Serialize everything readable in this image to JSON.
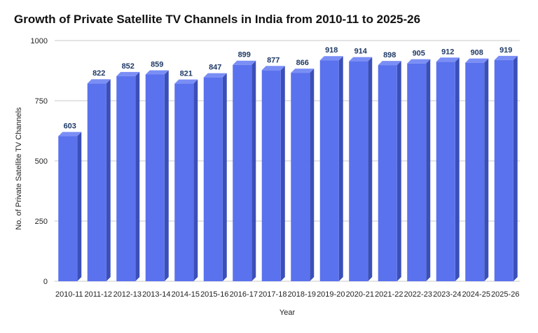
{
  "chart_data": {
    "type": "bar",
    "title": "Growth of Private Satellite TV Channels in India from 2010-11 to 2025-26",
    "xlabel": "Year",
    "ylabel": "No. of Private Satellite TV Channels",
    "ylim": [
      0,
      1000
    ],
    "yticks": [
      0,
      250,
      500,
      750,
      1000
    ],
    "grid": true,
    "legend": "none",
    "categories": [
      "2010-11",
      "2011-12",
      "2012-13",
      "2013-14",
      "2014-15",
      "2015-16",
      "2016-17",
      "2017-18",
      "2018-19",
      "2019-20",
      "2020-21",
      "2021-22",
      "2022-23",
      "2023-24",
      "2024-25",
      "2025-26"
    ],
    "values": [
      603,
      822,
      852,
      859,
      821,
      847,
      899,
      877,
      866,
      918,
      914,
      898,
      905,
      912,
      908,
      919
    ],
    "colors": {
      "bar_front": "#5b72ee",
      "bar_side": "#3b4fb8",
      "bar_top": "#7a8ef5",
      "data_label": "#1f3a66"
    }
  }
}
